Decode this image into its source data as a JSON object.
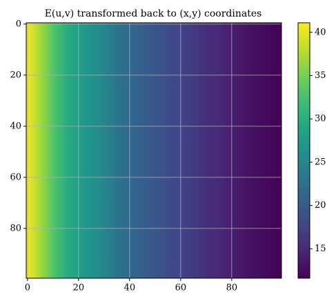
{
  "chart_data": {
    "type": "heatmap",
    "title": "E(u,v) transformed back to (x,y) coordinates",
    "x": [
      0,
      5,
      10,
      15,
      20,
      25,
      30,
      35,
      40,
      45,
      50,
      55,
      60,
      65,
      70,
      75,
      80,
      85,
      90,
      95,
      99
    ],
    "values": [
      41.1,
      37,
      33,
      30,
      28,
      26.5,
      25,
      23,
      21.5,
      20.5,
      19.5,
      18.5,
      17.5,
      16.5,
      15.5,
      15,
      14,
      13.3,
      12.7,
      12.1,
      11.6
    ],
    "xlim": [
      -0.5,
      99.5
    ],
    "ylim": [
      99.5,
      -0.5
    ],
    "xticks": [
      0,
      20,
      40,
      60,
      80
    ],
    "yticks": [
      0,
      20,
      40,
      60,
      80
    ],
    "grid": true,
    "colormap": "viridis",
    "clim": [
      11.6,
      41.1
    ],
    "cticks": [
      15,
      20,
      25,
      30,
      35,
      40
    ]
  }
}
